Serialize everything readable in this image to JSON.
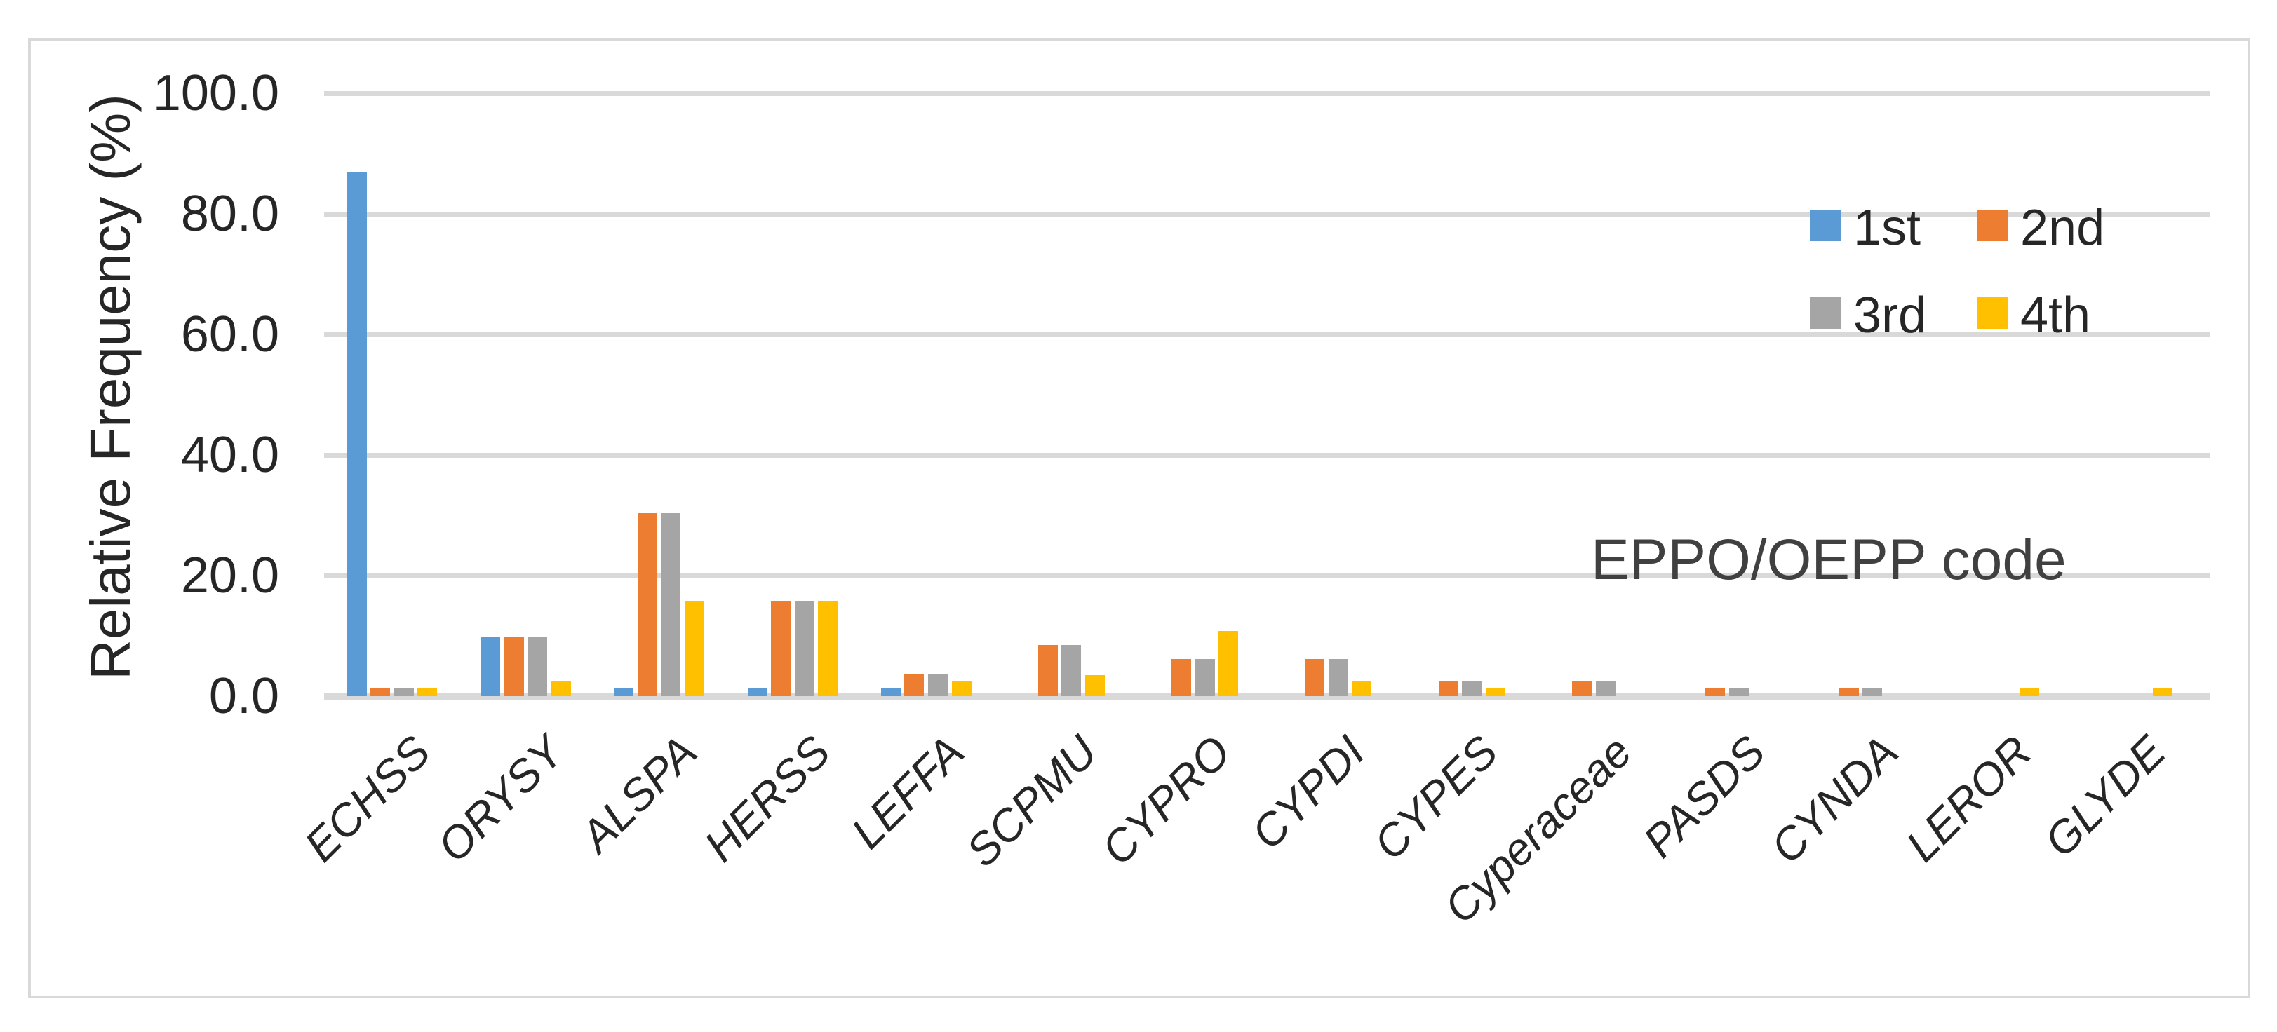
{
  "chart_data": {
    "type": "bar",
    "title": "",
    "ylabel": "Relative Frequency (%)",
    "x_axis_annotation": "EPPO/OEPP code",
    "categories": [
      "ECHSS",
      "ORYSY",
      "ALSPA",
      "HERSS",
      "LEFFA",
      "SCPMU",
      "CYPRO",
      "CYPDI",
      "CYPES",
      "Cyperaceae",
      "PASDS",
      "CYNDA",
      "LEROR",
      "GLYDE"
    ],
    "series": [
      {
        "name": "1st",
        "color": "#5B9BD5",
        "values": [
          86.9,
          9.9,
          1.3,
          1.3,
          1.3,
          0,
          0,
          0,
          0,
          0,
          0,
          0,
          0,
          0
        ]
      },
      {
        "name": "2nd",
        "color": "#ED7D31",
        "values": [
          1.3,
          9.9,
          30.3,
          15.8,
          3.6,
          8.5,
          6.2,
          6.2,
          2.6,
          2.6,
          1.3,
          1.3,
          0,
          0
        ]
      },
      {
        "name": "3rd",
        "color": "#A5A5A5",
        "values": [
          1.3,
          9.9,
          30.3,
          15.8,
          3.6,
          8.5,
          6.2,
          6.2,
          2.6,
          2.6,
          1.3,
          1.3,
          0,
          0
        ]
      },
      {
        "name": "4th",
        "color": "#FFC000",
        "values": [
          1.3,
          2.6,
          15.8,
          15.8,
          2.6,
          3.5,
          10.8,
          2.6,
          1.3,
          0,
          0,
          0,
          1.3,
          1.3
        ]
      }
    ],
    "ylim": [
      0,
      100
    ],
    "ytick_step": 20,
    "ytick_labels": [
      "0.0",
      "20.0",
      "40.0",
      "60.0",
      "80.0",
      "100.0"
    ],
    "grid": true,
    "legend_position": "top-right",
    "legend_rows": [
      [
        "1st",
        "2nd"
      ],
      [
        "3rd",
        "4th"
      ]
    ]
  },
  "colors": {
    "background": "#FFFFFF",
    "border": "#D9D9D9",
    "gridline": "#D9D9D9",
    "axis_line": "#D9D9D9",
    "tick_text": "#262626",
    "annotation_text": "#404040",
    "series_1st": "#5B9BD5",
    "series_2nd": "#ED7D31",
    "series_3rd": "#A5A5A5",
    "series_4th": "#FFC000"
  }
}
